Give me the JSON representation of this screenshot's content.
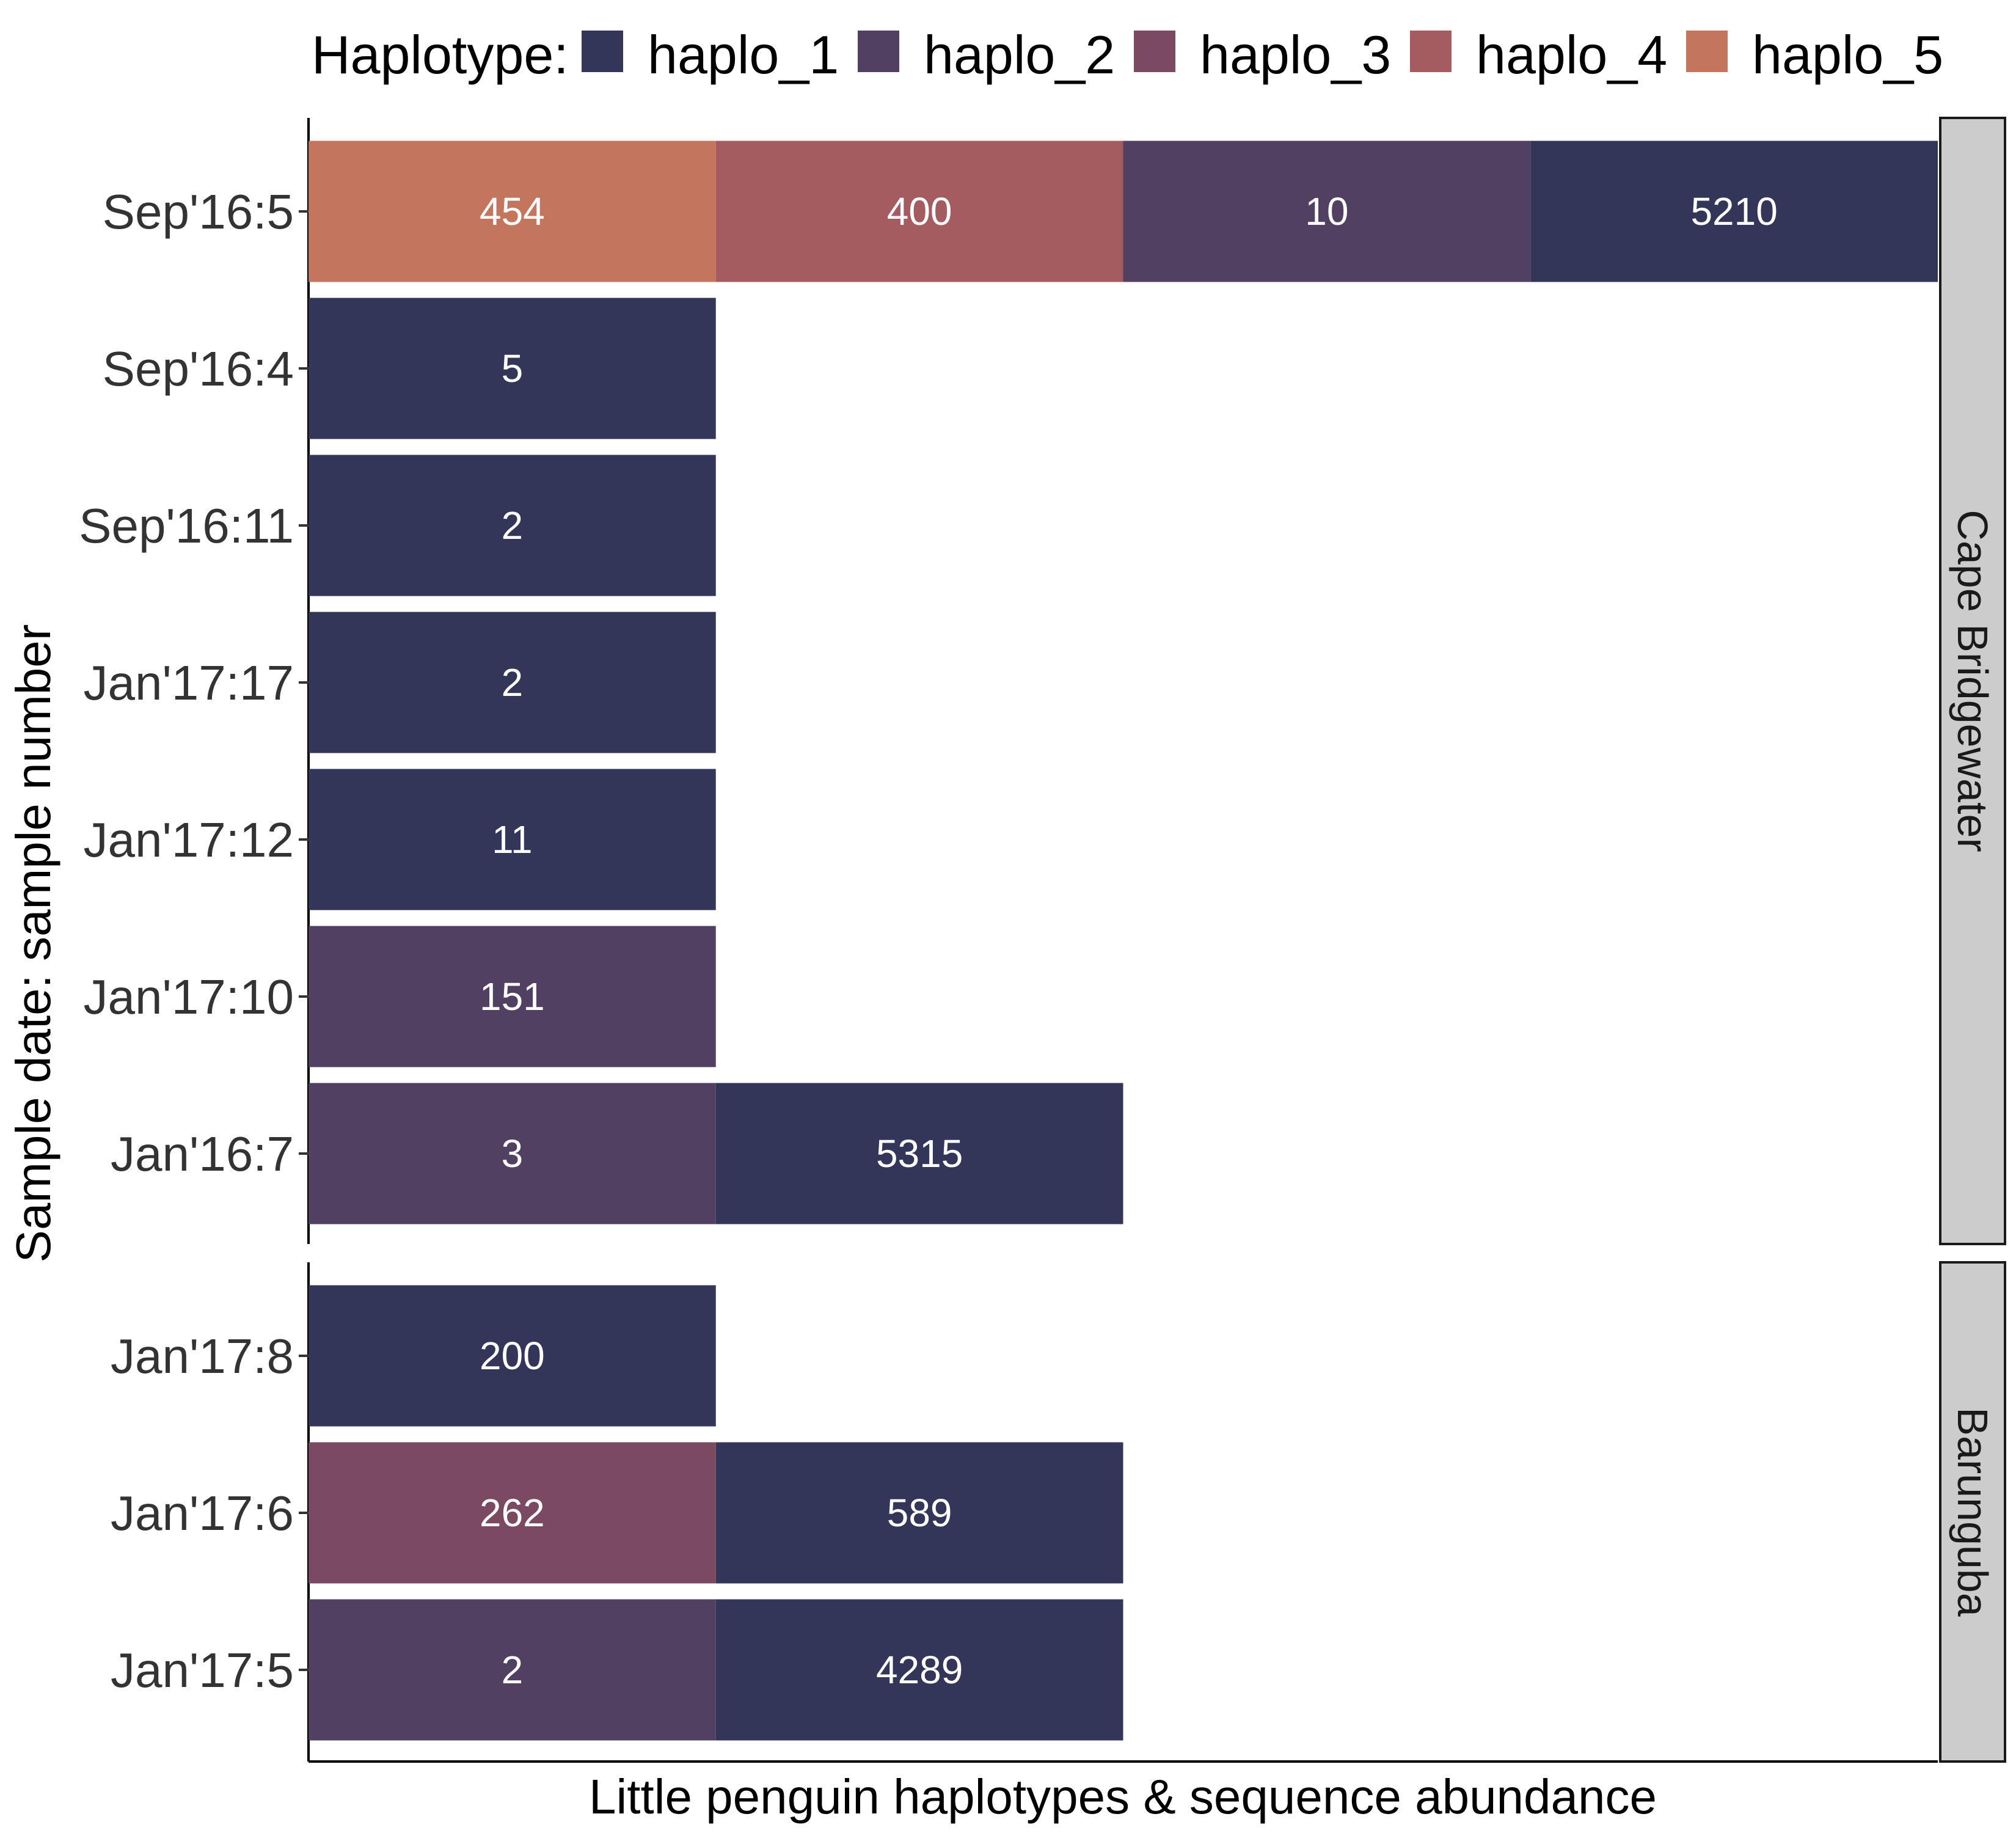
{
  "chart_data": {
    "type": "bar",
    "orientation": "horizontal",
    "xlabel": "Little penguin haplotypes & sequence abundance",
    "ylabel": "Sample date: sample number",
    "legend": {
      "title": "Haplotype:",
      "position": "top",
      "items": [
        {
          "name": "haplo_1",
          "color": "#333658"
        },
        {
          "name": "haplo_2",
          "color": "#514062"
        },
        {
          "name": "haplo_3",
          "color": "#7b4a62"
        },
        {
          "name": "haplo_4",
          "color": "#a45c60"
        },
        {
          "name": "haplo_5",
          "color": "#c4755e"
        }
      ]
    },
    "grid": false,
    "facets": [
      {
        "label": "Cape Bridgewater",
        "rows": [
          {
            "sample": "Sep'16:5",
            "segments": [
              {
                "haplotype": "haplo_5",
                "value": 454
              },
              {
                "haplotype": "haplo_4",
                "value": 400
              },
              {
                "haplotype": "haplo_2",
                "value": 10
              },
              {
                "haplotype": "haplo_1",
                "value": 5210
              }
            ]
          },
          {
            "sample": "Sep'16:4",
            "segments": [
              {
                "haplotype": "haplo_1",
                "value": 5
              }
            ]
          },
          {
            "sample": "Sep'16:11",
            "segments": [
              {
                "haplotype": "haplo_1",
                "value": 2
              }
            ]
          },
          {
            "sample": "Jan'17:17",
            "segments": [
              {
                "haplotype": "haplo_1",
                "value": 2
              }
            ]
          },
          {
            "sample": "Jan'17:12",
            "segments": [
              {
                "haplotype": "haplo_1",
                "value": 11
              }
            ]
          },
          {
            "sample": "Jan'17:10",
            "segments": [
              {
                "haplotype": "haplo_2",
                "value": 151
              }
            ]
          },
          {
            "sample": "Jan'16:7",
            "segments": [
              {
                "haplotype": "haplo_2",
                "value": 3
              },
              {
                "haplotype": "haplo_1",
                "value": 5315
              }
            ]
          }
        ]
      },
      {
        "label": "Barunguba",
        "rows": [
          {
            "sample": "Jan'17:8",
            "segments": [
              {
                "haplotype": "haplo_1",
                "value": 200
              }
            ]
          },
          {
            "sample": "Jan'17:6",
            "segments": [
              {
                "haplotype": "haplo_3",
                "value": 262
              },
              {
                "haplotype": "haplo_1",
                "value": 589
              }
            ]
          },
          {
            "sample": "Jan'17:5",
            "segments": [
              {
                "haplotype": "haplo_2",
                "value": 2
              },
              {
                "haplotype": "haplo_1",
                "value": 4289
              }
            ]
          }
        ]
      }
    ]
  }
}
